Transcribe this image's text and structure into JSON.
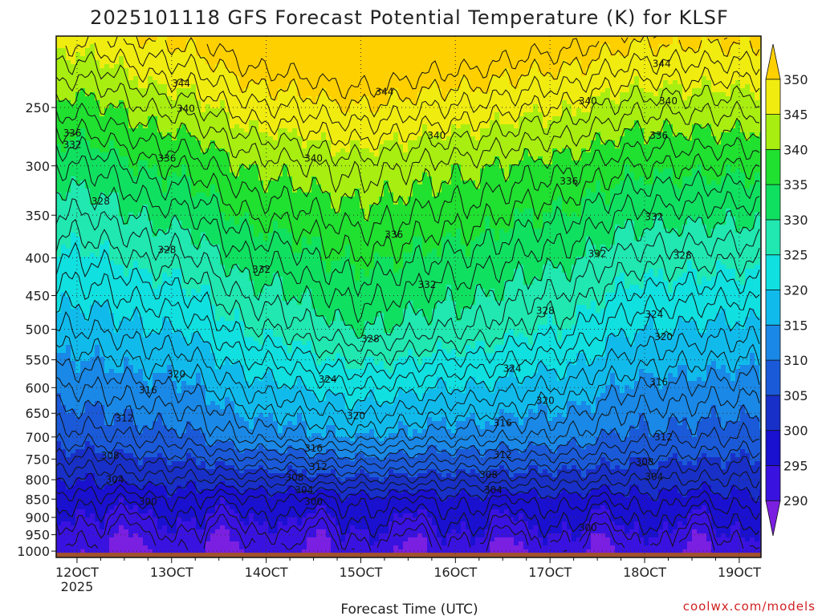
{
  "chart_data": {
    "type": "heatmap",
    "title": "2025101118 GFS Forecast Potential Temperature (K) for KLSF",
    "xlabel": "Forecast Time (UTC)",
    "ylabel": "",
    "credit": "coolwx.com/models",
    "x_ticks": [
      {
        "label": "12OCT",
        "day": 12,
        "sublabel": "2025"
      },
      {
        "label": "13OCT",
        "day": 13
      },
      {
        "label": "14OCT",
        "day": 14
      },
      {
        "label": "15OCT",
        "day": 15
      },
      {
        "label": "16OCT",
        "day": 16
      },
      {
        "label": "17OCT",
        "day": 17
      },
      {
        "label": "18OCT",
        "day": 18
      },
      {
        "label": "19OCT",
        "day": 19
      }
    ],
    "xlim": [
      11.78,
      19.23
    ],
    "y_scale": "log-pressure",
    "ylim": [
      1020,
      200
    ],
    "y_ticks": [
      "250",
      "300",
      "350",
      "400",
      "450",
      "500",
      "550",
      "600",
      "650",
      "700",
      "750",
      "800",
      "850",
      "900",
      "950",
      "1000"
    ],
    "grid": "dotted",
    "colorbar": {
      "levels": [
        290,
        295,
        300,
        305,
        310,
        315,
        320,
        325,
        330,
        335,
        340,
        345,
        350
      ],
      "labels": [
        "290",
        "295",
        "300",
        "305",
        "310",
        "315",
        "320",
        "325",
        "330",
        "335",
        "340",
        "345",
        "350"
      ],
      "colors": [
        "#7b1fe0",
        "#3a12e0",
        "#1a10cf",
        "#1830c8",
        "#1a5ad8",
        "#1a88e6",
        "#10bbec",
        "#10e0e0",
        "#20e8b0",
        "#10e060",
        "#20e030",
        "#a8ee10",
        "#f0ec10",
        "#ffd000"
      ],
      "ground_color": "#a0522d"
    },
    "profiles": {
      "day": [
        12,
        13,
        14,
        15,
        16,
        17,
        18,
        19
      ],
      "theta_850": [
        297,
        298,
        298,
        299,
        299,
        299,
        299,
        299
      ],
      "theta_700": [
        307,
        309,
        313,
        315,
        313,
        312,
        309,
        308
      ],
      "theta_500": [
        318,
        320,
        326,
        330,
        328,
        325,
        320,
        319
      ],
      "theta_300": [
        332,
        336,
        341,
        343,
        341,
        339,
        336,
        336
      ]
    },
    "contour_labels": [
      {
        "text": "344",
        "day": 13.1,
        "p": 232
      },
      {
        "text": "344",
        "day": 15.25,
        "p": 238
      },
      {
        "text": "344",
        "day": 18.18,
        "p": 218
      },
      {
        "text": "340",
        "day": 13.15,
        "p": 251
      },
      {
        "text": "340",
        "day": 14.5,
        "p": 293
      },
      {
        "text": "340",
        "day": 15.8,
        "p": 273
      },
      {
        "text": "340",
        "day": 17.4,
        "p": 245
      },
      {
        "text": "340",
        "day": 18.25,
        "p": 245
      },
      {
        "text": "336",
        "day": 11.95,
        "p": 271
      },
      {
        "text": "336",
        "day": 12.95,
        "p": 293
      },
      {
        "text": "336",
        "day": 15.35,
        "p": 372
      },
      {
        "text": "336",
        "day": 17.2,
        "p": 315
      },
      {
        "text": "336",
        "day": 18.15,
        "p": 273
      },
      {
        "text": "332",
        "day": 11.95,
        "p": 281
      },
      {
        "text": "332",
        "day": 13.95,
        "p": 415
      },
      {
        "text": "332",
        "day": 15.7,
        "p": 435
      },
      {
        "text": "332",
        "day": 17.5,
        "p": 395
      },
      {
        "text": "332",
        "day": 18.1,
        "p": 352
      },
      {
        "text": "328",
        "day": 12.25,
        "p": 335
      },
      {
        "text": "328",
        "day": 12.95,
        "p": 390
      },
      {
        "text": "328",
        "day": 15.1,
        "p": 515
      },
      {
        "text": "328",
        "day": 16.95,
        "p": 472
      },
      {
        "text": "328",
        "day": 18.4,
        "p": 397
      },
      {
        "text": "324",
        "day": 14.65,
        "p": 585
      },
      {
        "text": "324",
        "day": 16.6,
        "p": 565
      },
      {
        "text": "324",
        "day": 18.1,
        "p": 477
      },
      {
        "text": "320",
        "day": 13.05,
        "p": 575
      },
      {
        "text": "320",
        "day": 14.95,
        "p": 655
      },
      {
        "text": "320",
        "day": 16.95,
        "p": 625
      },
      {
        "text": "320",
        "day": 18.2,
        "p": 512
      },
      {
        "text": "316",
        "day": 12.75,
        "p": 605
      },
      {
        "text": "316",
        "day": 14.5,
        "p": 725
      },
      {
        "text": "316",
        "day": 16.5,
        "p": 670
      },
      {
        "text": "316",
        "day": 18.15,
        "p": 590
      },
      {
        "text": "312",
        "day": 12.5,
        "p": 660
      },
      {
        "text": "312",
        "day": 14.55,
        "p": 768
      },
      {
        "text": "312",
        "day": 16.5,
        "p": 740
      },
      {
        "text": "312",
        "day": 18.2,
        "p": 700
      },
      {
        "text": "308",
        "day": 12.35,
        "p": 742
      },
      {
        "text": "308",
        "day": 14.3,
        "p": 795
      },
      {
        "text": "308",
        "day": 16.35,
        "p": 788
      },
      {
        "text": "308",
        "day": 18.0,
        "p": 757
      },
      {
        "text": "304",
        "day": 12.4,
        "p": 800
      },
      {
        "text": "304",
        "day": 14.4,
        "p": 826
      },
      {
        "text": "304",
        "day": 16.4,
        "p": 826
      },
      {
        "text": "304",
        "day": 18.1,
        "p": 793
      },
      {
        "text": "300",
        "day": 12.75,
        "p": 857
      },
      {
        "text": "300",
        "day": 14.5,
        "p": 857
      },
      {
        "text": "300",
        "day": 17.4,
        "p": 930
      }
    ]
  }
}
